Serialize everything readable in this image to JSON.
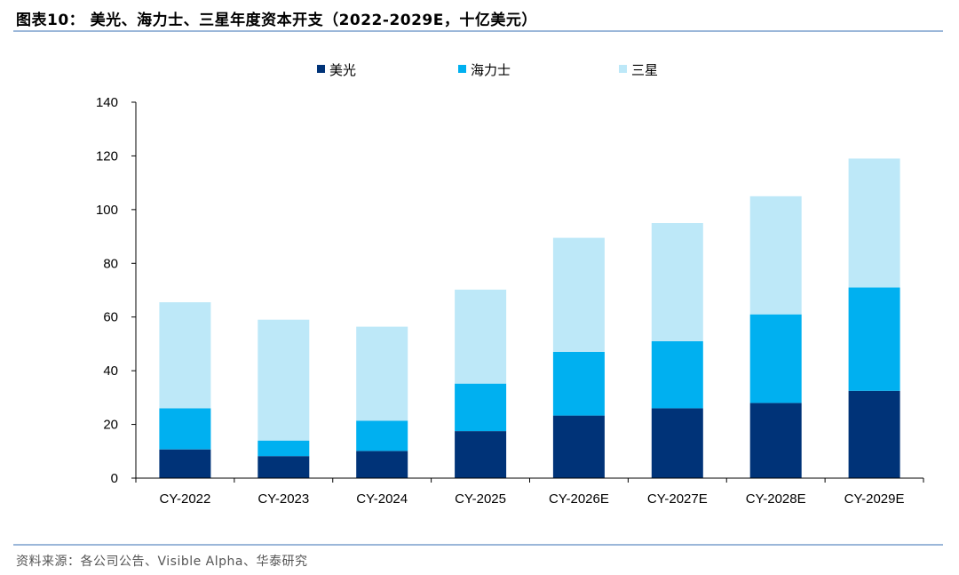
{
  "header": {
    "title": "图表10： 美光、海力士、三星年度资本开支（2022-2029E，十亿美元）"
  },
  "footer": {
    "source": "资料来源：各公司公告、Visible Alpha、华泰研究"
  },
  "chart_data": {
    "type": "bar",
    "stacked": true,
    "categories": [
      "CY-2022",
      "CY-2023",
      "CY-2024",
      "CY-2025",
      "CY-2026E",
      "CY-2027E",
      "CY-2028E",
      "CY-2029E"
    ],
    "series": [
      {
        "name": "美光",
        "color": "#003378",
        "values": [
          10.7,
          8.2,
          10.1,
          17.5,
          23.3,
          26.0,
          28.0,
          32.5
        ]
      },
      {
        "name": "海力士",
        "color": "#00b0f0",
        "values": [
          15.3,
          5.8,
          11.3,
          17.7,
          23.7,
          25.0,
          33.0,
          38.5
        ]
      },
      {
        "name": "三星",
        "color": "#bde8f8",
        "values": [
          39.5,
          45.0,
          35.0,
          35.0,
          42.5,
          44.0,
          44.0,
          48.0
        ]
      }
    ],
    "yticks": [
      "0",
      "20",
      "40",
      "60",
      "80",
      "100",
      "120",
      "140"
    ],
    "ylim": [
      0,
      140
    ],
    "legend_position": "top-center",
    "grid": false
  }
}
